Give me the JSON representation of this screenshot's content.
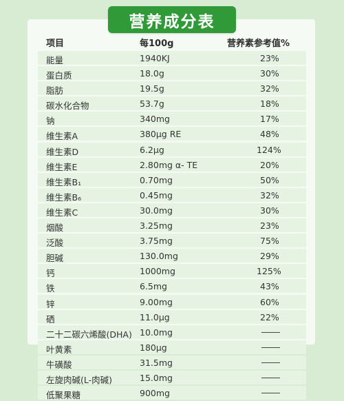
{
  "title": "营养成分表",
  "header": {
    "item": "项目",
    "per100g": "每100g",
    "nrv": "营养素参考值%"
  },
  "rows": [
    {
      "name": "能量",
      "amount": "1940KJ",
      "nrv": "23%"
    },
    {
      "name": "蛋白质",
      "amount": "18.0g",
      "nrv": "30%"
    },
    {
      "name": "脂肪",
      "amount": "19.5g",
      "nrv": "32%"
    },
    {
      "name": "碳水化合物",
      "amount": "53.7g",
      "nrv": "18%"
    },
    {
      "name": "钠",
      "amount": "340mg",
      "nrv": "17%"
    },
    {
      "name": "维生素A",
      "amount": "380μg RE",
      "nrv": "48%"
    },
    {
      "name": "维生素D",
      "amount": "6.2μg",
      "nrv": "124%"
    },
    {
      "name": "维生素E",
      "amount": "2.80mg α- TE",
      "nrv": "20%"
    },
    {
      "name": "维生素B₁",
      "amount": "0.70mg",
      "nrv": "50%"
    },
    {
      "name": "维生素B₆",
      "amount": "0.45mg",
      "nrv": "32%"
    },
    {
      "name": "维生素C",
      "amount": "30.0mg",
      "nrv": "30%"
    },
    {
      "name": "烟酸",
      "amount": "3.25mg",
      "nrv": "23%"
    },
    {
      "name": "泛酸",
      "amount": "3.75mg",
      "nrv": "75%"
    },
    {
      "name": "胆碱",
      "amount": "130.0mg",
      "nrv": "29%"
    },
    {
      "name": "钙",
      "amount": "1000mg",
      "nrv": "125%"
    },
    {
      "name": "铁",
      "amount": "6.5mg",
      "nrv": "43%"
    },
    {
      "name": "锌",
      "amount": "9.00mg",
      "nrv": "60%"
    },
    {
      "name": "硒",
      "amount": "11.0μg",
      "nrv": "22%"
    },
    {
      "name": "二十二碳六烯酸(DHA)",
      "amount": "10.0mg",
      "nrv": ""
    },
    {
      "name": "叶黄素",
      "amount": "180μg",
      "nrv": ""
    },
    {
      "name": "牛磺酸",
      "amount": "31.5mg",
      "nrv": ""
    },
    {
      "name": "左旋肉碱(L-肉碱)",
      "amount": "15.0mg",
      "nrv": ""
    },
    {
      "name": "低聚果糖",
      "amount": "900mg",
      "nrv": ""
    }
  ]
}
